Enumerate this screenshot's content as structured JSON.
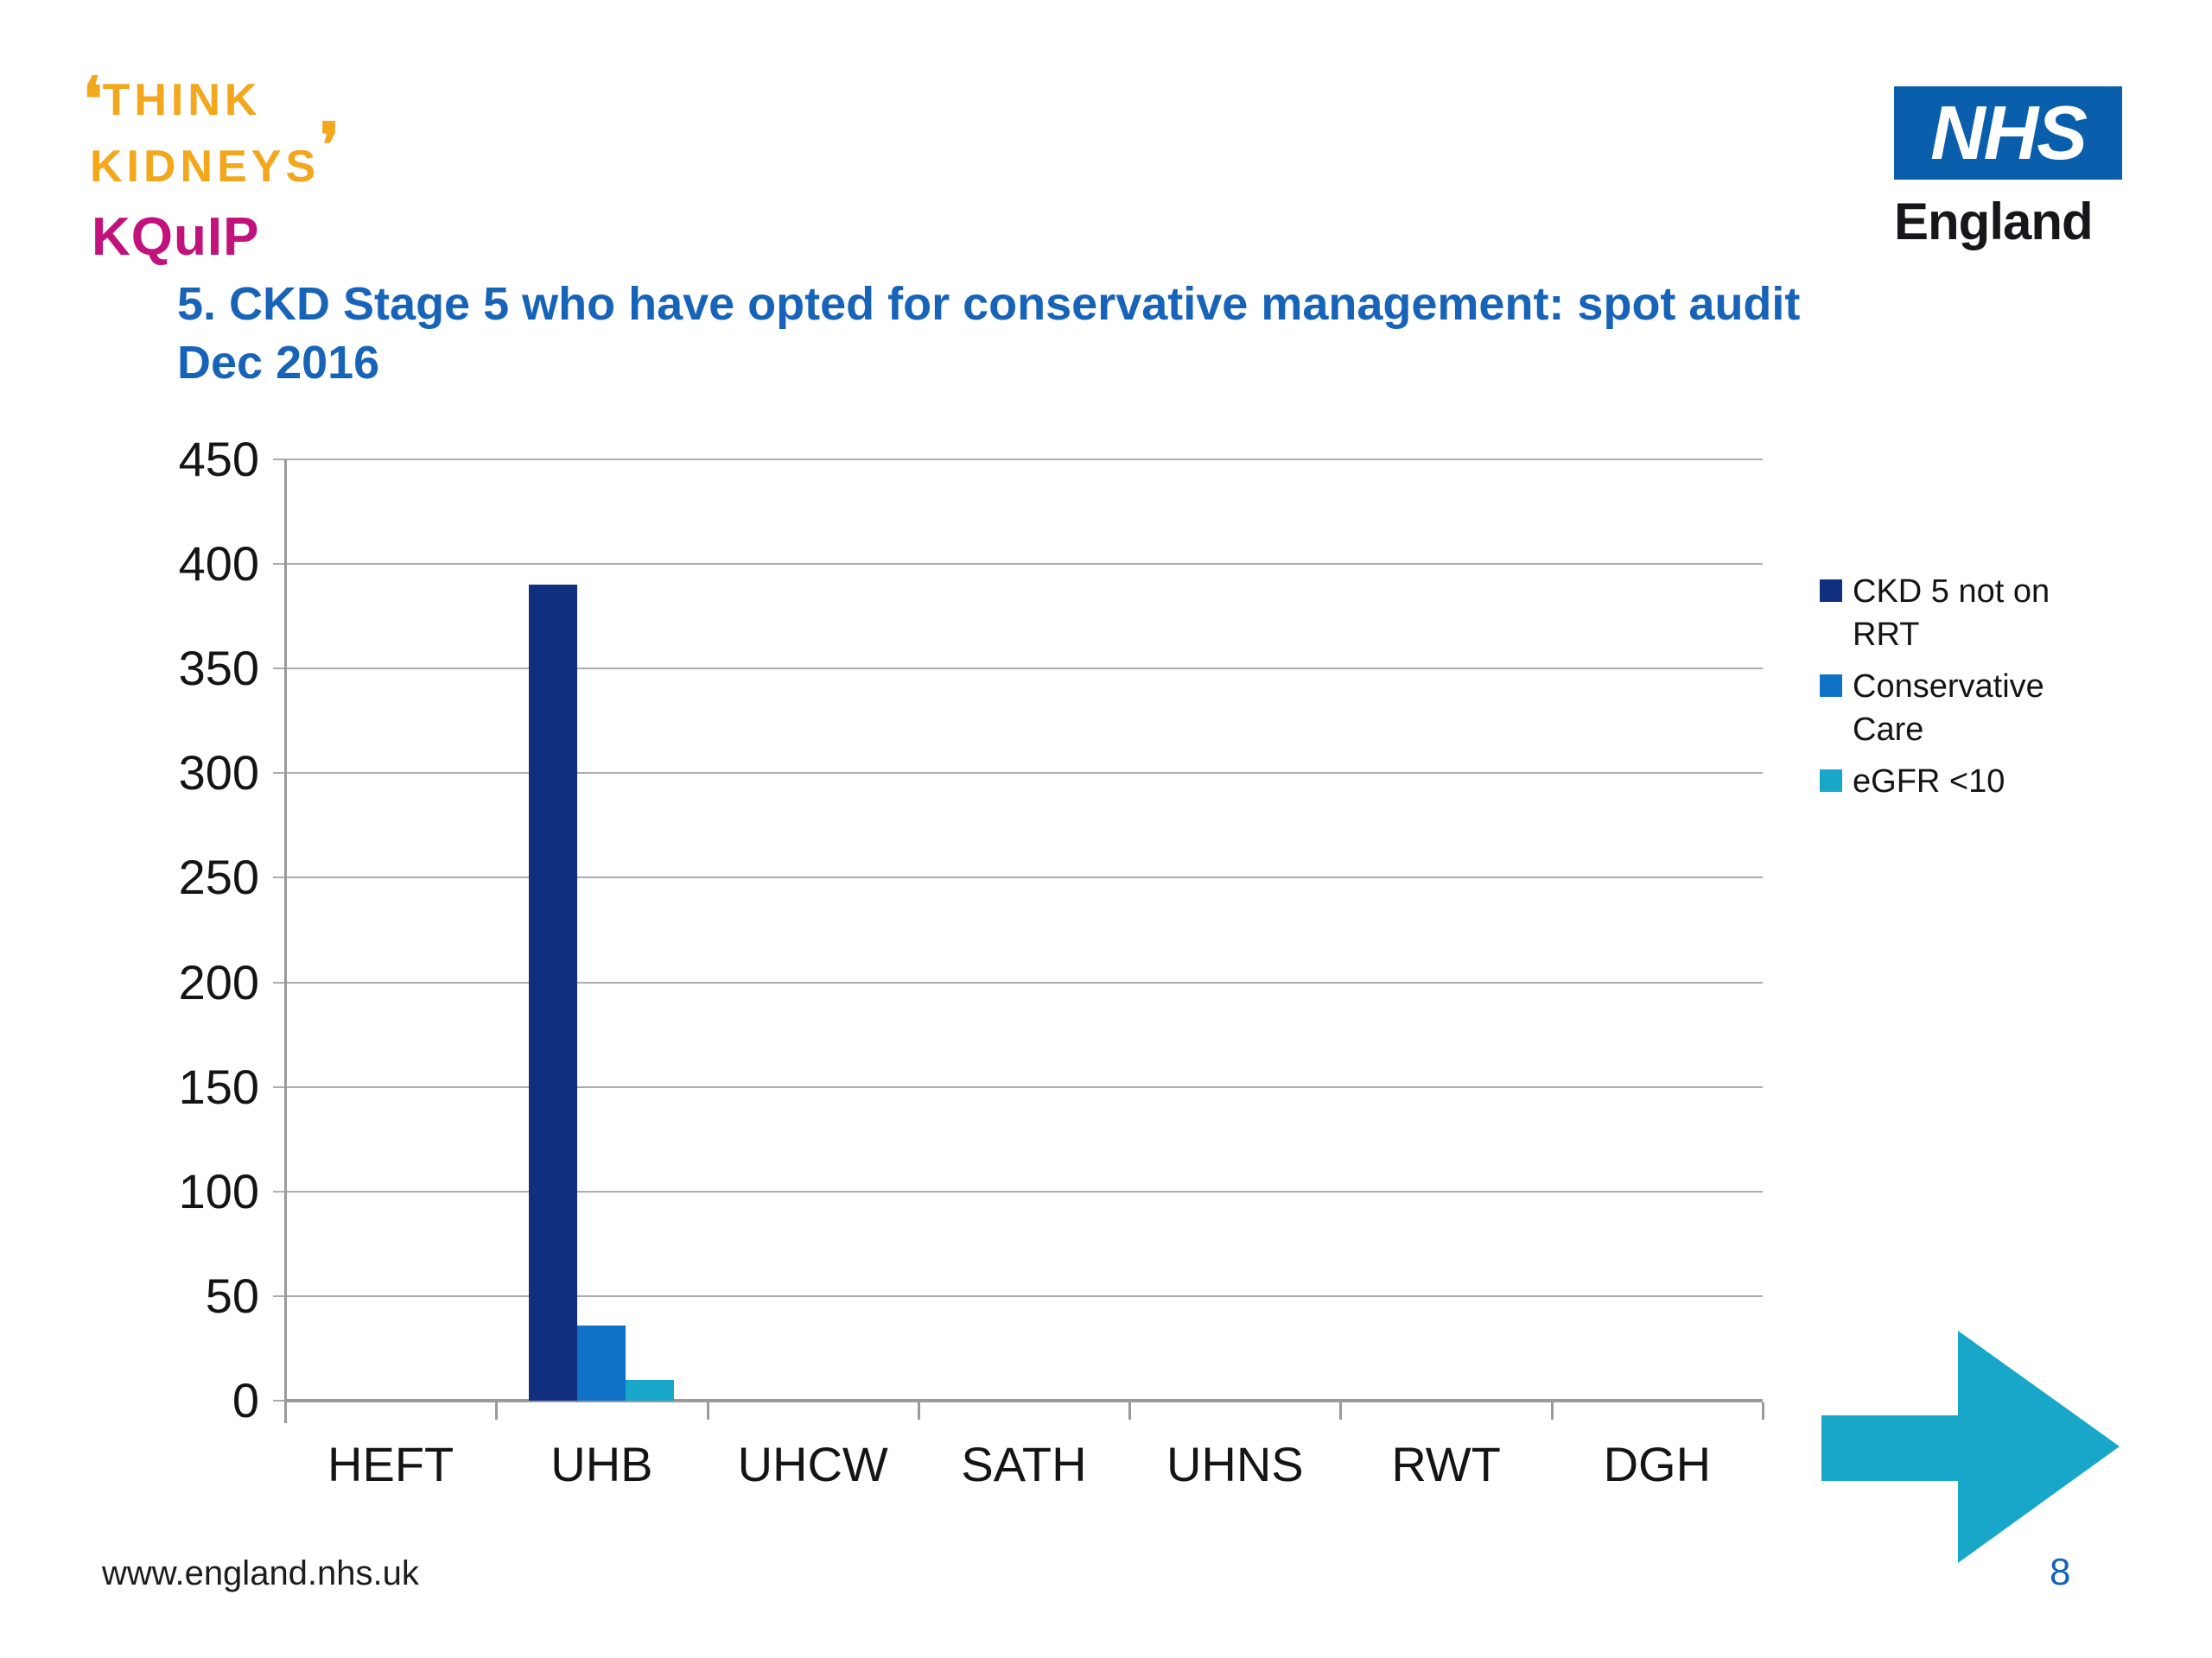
{
  "slide": {
    "title_line1": "5. CKD Stage 5 who have opted for conservative management: spot audit",
    "title_line2": "Dec 2016",
    "footer_url": "www.england.nhs.uk",
    "page_number": "8"
  },
  "logos": {
    "think_kidneys": {
      "open_quote": "❛",
      "word1": "THINK",
      "word2": "KIDNEYS",
      "close_quote": "❜",
      "sub_brand": "KQuIP",
      "orange": "#f2a71d",
      "magenta": "#c2137c"
    },
    "nhs": {
      "acronym": "NHS",
      "region": "England",
      "box_color": "#0a5fad"
    }
  },
  "colors": {
    "title_blue": "#1763b8",
    "grid_gray": "#ababab",
    "axis_gray": "#9a9a9a",
    "text_black": "#141414",
    "arrow_teal": "#18a7c8"
  },
  "chart_data": {
    "type": "bar",
    "title": "",
    "xlabel": "",
    "ylabel": "",
    "categories": [
      "HEFT",
      "UHB",
      "UHCW",
      "SATH",
      "UHNS",
      "RWT",
      "DGH"
    ],
    "series": [
      {
        "name": "CKD 5 not on RRT",
        "color": "#10307f",
        "values": [
          0,
          390,
          0,
          0,
          0,
          0,
          0
        ]
      },
      {
        "name": "Conservative Care",
        "color": "#0f72c6",
        "values": [
          0,
          36,
          0,
          0,
          0,
          0,
          0
        ]
      },
      {
        "name": "eGFR <10",
        "color": "#18a7c8",
        "values": [
          0,
          10,
          0,
          0,
          0,
          0,
          0
        ]
      }
    ],
    "ylim": [
      0,
      450
    ],
    "yticks": [
      0,
      50,
      100,
      150,
      200,
      250,
      300,
      350,
      400,
      450
    ],
    "grid": true,
    "legend_position": "right"
  }
}
